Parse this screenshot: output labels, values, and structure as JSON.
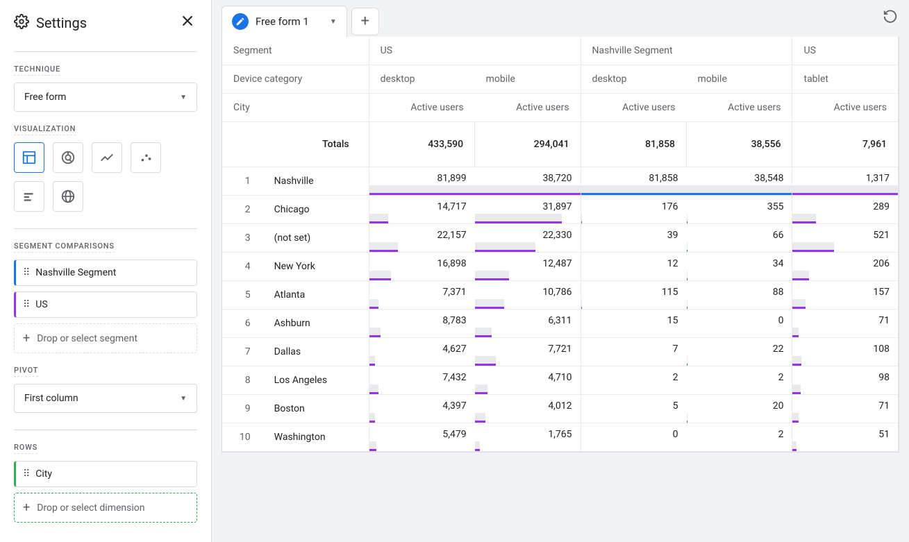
{
  "sidebar": {
    "title": "Settings",
    "technique_label": "TECHNIQUE",
    "technique_value": "Free form",
    "visualization_label": "VISUALIZATION",
    "segment_label": "SEGMENT COMPARISONS",
    "segments": [
      "Nashville Segment",
      "US"
    ],
    "segment_drop": "Drop or select segment",
    "pivot_label": "PIVOT",
    "pivot_value": "First column",
    "rows_label": "ROWS",
    "rows": [
      "City"
    ],
    "rows_drop": "Drop or select dimension"
  },
  "tab": {
    "name": "Free form 1"
  },
  "table": {
    "header_rows": {
      "segment_label": "Segment",
      "device_label": "Device category",
      "dim_label": "City",
      "metric_label": "Active users",
      "segments": [
        "US",
        "Nashville Segment",
        "US"
      ],
      "devices": [
        [
          "desktop",
          "mobile"
        ],
        [
          "desktop",
          "mobile"
        ],
        [
          "tablet"
        ]
      ]
    },
    "totals_label": "Totals",
    "totals": [
      "433,590",
      "294,041",
      "81,858",
      "38,556",
      "7,961"
    ],
    "totals_num": [
      433590,
      294041,
      81858,
      38556,
      7961
    ],
    "colors": {
      "us_bar": "#9334e6",
      "nash_bar": "#1a73e8",
      "bg_bar": "#e8eaed"
    },
    "column_color_idx": [
      0,
      0,
      1,
      1,
      0
    ],
    "rows": [
      {
        "idx": "1",
        "city": "Nashville",
        "v": [
          "81,899",
          "38,720",
          "81,858",
          "38,548",
          "1,317"
        ],
        "n": [
          81899,
          38720,
          81858,
          38548,
          1317
        ]
      },
      {
        "idx": "2",
        "city": "Chicago",
        "v": [
          "14,717",
          "31,897",
          "176",
          "355",
          "289"
        ],
        "n": [
          14717,
          31897,
          176,
          355,
          289
        ]
      },
      {
        "idx": "3",
        "city": "(not set)",
        "v": [
          "22,157",
          "22,330",
          "39",
          "66",
          "521"
        ],
        "n": [
          22157,
          22330,
          39,
          66,
          521
        ]
      },
      {
        "idx": "4",
        "city": "New York",
        "v": [
          "16,898",
          "12,487",
          "12",
          "34",
          "206"
        ],
        "n": [
          16898,
          12487,
          12,
          34,
          206
        ]
      },
      {
        "idx": "5",
        "city": "Atlanta",
        "v": [
          "7,371",
          "10,786",
          "115",
          "88",
          "157"
        ],
        "n": [
          7371,
          10786,
          115,
          88,
          157
        ]
      },
      {
        "idx": "6",
        "city": "Ashburn",
        "v": [
          "8,783",
          "6,311",
          "15",
          "0",
          "71"
        ],
        "n": [
          8783,
          6311,
          15,
          0,
          71
        ]
      },
      {
        "idx": "7",
        "city": "Dallas",
        "v": [
          "4,627",
          "7,721",
          "7",
          "22",
          "108"
        ],
        "n": [
          4627,
          7721,
          7,
          22,
          108
        ]
      },
      {
        "idx": "8",
        "city": "Los Angeles",
        "v": [
          "7,432",
          "4,710",
          "2",
          "2",
          "98"
        ],
        "n": [
          7432,
          4710,
          2,
          2,
          98
        ]
      },
      {
        "idx": "9",
        "city": "Boston",
        "v": [
          "4,397",
          "4,012",
          "5",
          "20",
          "71"
        ],
        "n": [
          4397,
          4012,
          5,
          20,
          71
        ]
      },
      {
        "idx": "10",
        "city": "Washington",
        "v": [
          "5,479",
          "1,765",
          "0",
          "2",
          "51"
        ],
        "n": [
          5479,
          1765,
          0,
          2,
          51
        ]
      }
    ]
  }
}
